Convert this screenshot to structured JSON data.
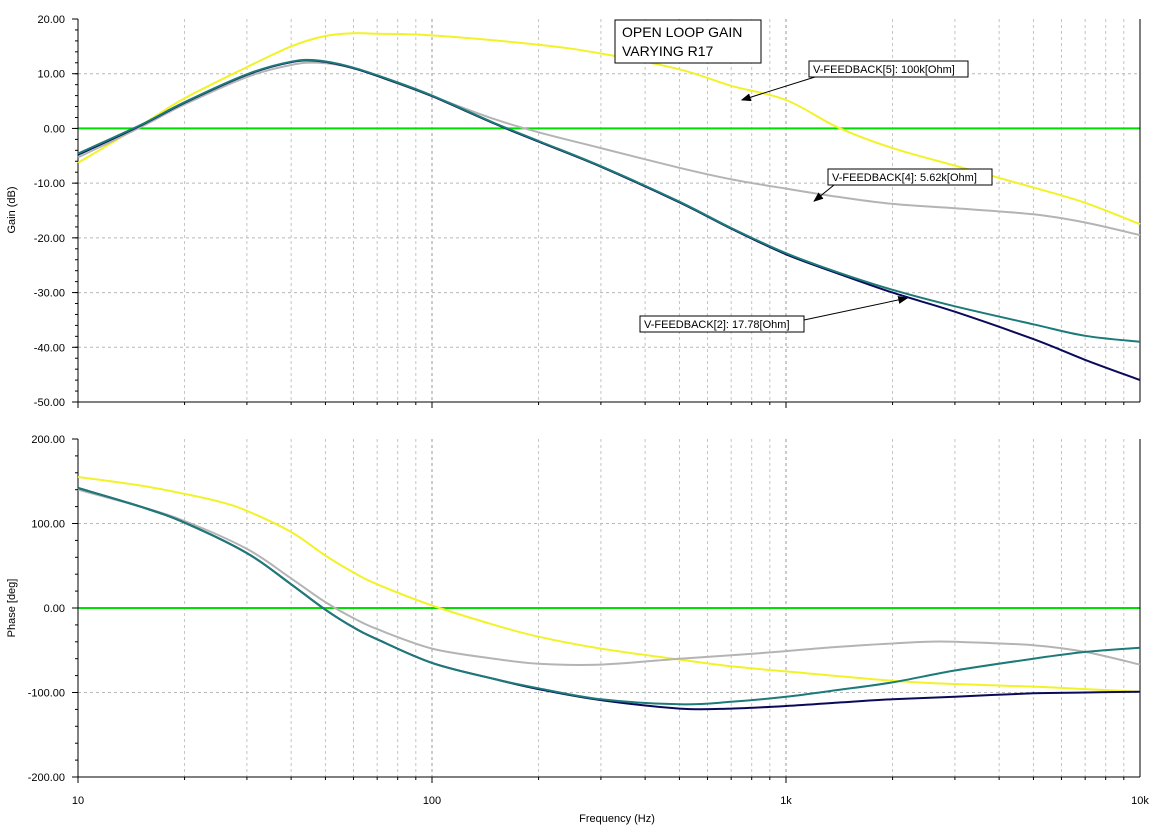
{
  "chart_data": [
    {
      "type": "line",
      "id": "gain",
      "ylabel": "Gain (dB)",
      "xscale": "log",
      "xlim": [
        10,
        10000
      ],
      "ylim": [
        -50,
        20
      ],
      "yticks": [
        20,
        10,
        0,
        -10,
        -20,
        -30,
        -40,
        -50
      ],
      "ytick_labels": [
        "20.00",
        "10.00",
        "0.00",
        "-10.00",
        "-20.00",
        "-30.00",
        "-40.00",
        "-50.00"
      ],
      "grid": true,
      "reference_line": {
        "y": 0,
        "color": "#00e000"
      },
      "annotation": {
        "lines": [
          "OPEN LOOP GAIN",
          "VARYING R17"
        ]
      },
      "series": [
        {
          "name": "V-FEEDBACK[5]: 100k[Ohm]",
          "color": "#f2f228",
          "x": [
            10,
            15,
            20,
            30,
            40,
            50,
            60,
            70,
            100,
            200,
            300,
            500,
            700,
            1000,
            1400,
            2000,
            3000,
            5000,
            7000,
            10000
          ],
          "y": [
            -6.3,
            0.5,
            5.5,
            11.2,
            15.0,
            16.9,
            17.4,
            17.3,
            17,
            15.3,
            13.7,
            10.8,
            7.8,
            5.2,
            0.2,
            -3.6,
            -6.8,
            -10.8,
            -13.6,
            -17.5
          ]
        },
        {
          "name": "V-FEEDBACK[4]: 5.62k[Ohm]",
          "color": "#b4b4b4",
          "x": [
            10,
            15,
            20,
            30,
            40,
            48,
            60,
            80,
            100,
            150,
            200,
            300,
            500,
            700,
            1000,
            1400,
            2000,
            3000,
            5000,
            7000,
            10000
          ],
          "y": [
            -5.3,
            0.2,
            4.4,
            9.4,
            11.6,
            12.0,
            11.0,
            8.2,
            5.9,
            1.7,
            -0.7,
            -3.6,
            -7.2,
            -9.3,
            -11,
            -12.5,
            -13.8,
            -14.6,
            -15.7,
            -17.2,
            -19.5
          ]
        },
        {
          "name": "V-FEEDBACK[2]: 17.78[Ohm]",
          "color": "#0a0a5a",
          "x": [
            10,
            15,
            20,
            30,
            40,
            48,
            60,
            80,
            100,
            150,
            200,
            300,
            500,
            700,
            1000,
            1400,
            2000,
            3000,
            5000,
            7000,
            10000
          ],
          "y": [
            -4.8,
            0.5,
            4.7,
            9.8,
            12.1,
            12.3,
            11.0,
            8.3,
            5.9,
            0.9,
            -2.4,
            -7.0,
            -13.5,
            -18.3,
            -23.0,
            -26.5,
            -30.0,
            -33.5,
            -38.5,
            -42.3,
            -46.0
          ]
        },
        {
          "name": "",
          "color": "#1c7a78",
          "x": [
            10,
            15,
            20,
            30,
            40,
            48,
            60,
            80,
            100,
            150,
            200,
            300,
            500,
            700,
            1000,
            1400,
            2000,
            3000,
            5000,
            7000,
            10000
          ],
          "y": [
            -4.6,
            0.6,
            4.8,
            9.9,
            12.2,
            12.4,
            11.1,
            8.4,
            6.0,
            1.0,
            -2.3,
            -6.9,
            -13.4,
            -18.2,
            -22.8,
            -26.3,
            -29.5,
            -32.5,
            -35.8,
            -37.9,
            -39.0
          ]
        }
      ],
      "callouts": [
        {
          "text": "V-FEEDBACK[5]: 100k[Ohm]",
          "target": [
            750,
            5.2
          ]
        },
        {
          "text": "V-FEEDBACK[4]: 5.62k[Ohm]",
          "target": [
            1200,
            -13.3
          ]
        },
        {
          "text": "V-FEEDBACK[2]: 17.78[Ohm]",
          "target": [
            2200,
            -31.0
          ]
        }
      ]
    },
    {
      "type": "line",
      "id": "phase",
      "xlabel": "Frequency (Hz)",
      "ylabel": "Phase [deg]",
      "xscale": "log",
      "xlim": [
        10,
        10000
      ],
      "ylim": [
        -200,
        200
      ],
      "yticks": [
        200,
        100,
        0,
        -100,
        -200
      ],
      "ytick_labels": [
        "200.00",
        "100.00",
        "0.00",
        "-100.00",
        "-200.00"
      ],
      "xticks": [
        10,
        100,
        1000,
        10000
      ],
      "xtick_labels": [
        "10",
        "100",
        "1k",
        "10k"
      ],
      "grid": true,
      "reference_line": {
        "y": 0,
        "color": "#00e000"
      },
      "series": [
        {
          "name": "V-FEEDBACK[5]: 100k[Ohm]",
          "color": "#f2f228",
          "x": [
            10,
            15,
            20,
            25,
            30,
            40,
            50,
            60,
            70,
            100,
            150,
            200,
            300,
            500,
            700,
            1000,
            2000,
            3000,
            5000,
            7000,
            10000
          ],
          "y": [
            155,
            145,
            135,
            126,
            115,
            90,
            62,
            42,
            28,
            3,
            -20,
            -34,
            -48,
            -61,
            -69,
            -75,
            -86,
            -90,
            -93,
            -96,
            -99
          ]
        },
        {
          "name": "V-FEEDBACK[4]: 5.62k[Ohm]",
          "color": "#b4b4b4",
          "x": [
            10,
            15,
            20,
            30,
            40,
            50,
            60,
            70,
            100,
            150,
            200,
            300,
            500,
            700,
            1000,
            1400,
            2000,
            2500,
            3000,
            5000,
            7000,
            10000
          ],
          "y": [
            140,
            120,
            103,
            70,
            35,
            7,
            -12,
            -25,
            -48,
            -60,
            -66,
            -67,
            -60,
            -56,
            -51,
            -46,
            -42,
            -40,
            -40,
            -44,
            -52,
            -67
          ]
        },
        {
          "name": "V-FEEDBACK[2]: 17.78[Ohm]",
          "color": "#0a0a5a",
          "x": [
            10,
            15,
            20,
            30,
            40,
            50,
            60,
            70,
            100,
            150,
            200,
            300,
            500,
            700,
            1000,
            1400,
            2000,
            3000,
            5000,
            7000,
            10000
          ],
          "y": [
            142,
            120,
            101,
            65,
            28,
            -2,
            -23,
            -37,
            -65,
            -84,
            -96,
            -109,
            -119,
            -119,
            -116,
            -112,
            -108,
            -105,
            -101,
            -100,
            -99
          ]
        },
        {
          "name": "",
          "color": "#1c7a78",
          "x": [
            10,
            15,
            20,
            30,
            40,
            50,
            60,
            70,
            100,
            150,
            200,
            300,
            500,
            700,
            1000,
            1400,
            2000,
            3000,
            5000,
            7000,
            10000
          ],
          "y": [
            142,
            120,
            101,
            65,
            28,
            -2,
            -23,
            -37,
            -65,
            -84,
            -95,
            -108,
            -114,
            -111,
            -105,
            -97,
            -88,
            -74,
            -60,
            -52,
            -47
          ]
        }
      ]
    }
  ]
}
